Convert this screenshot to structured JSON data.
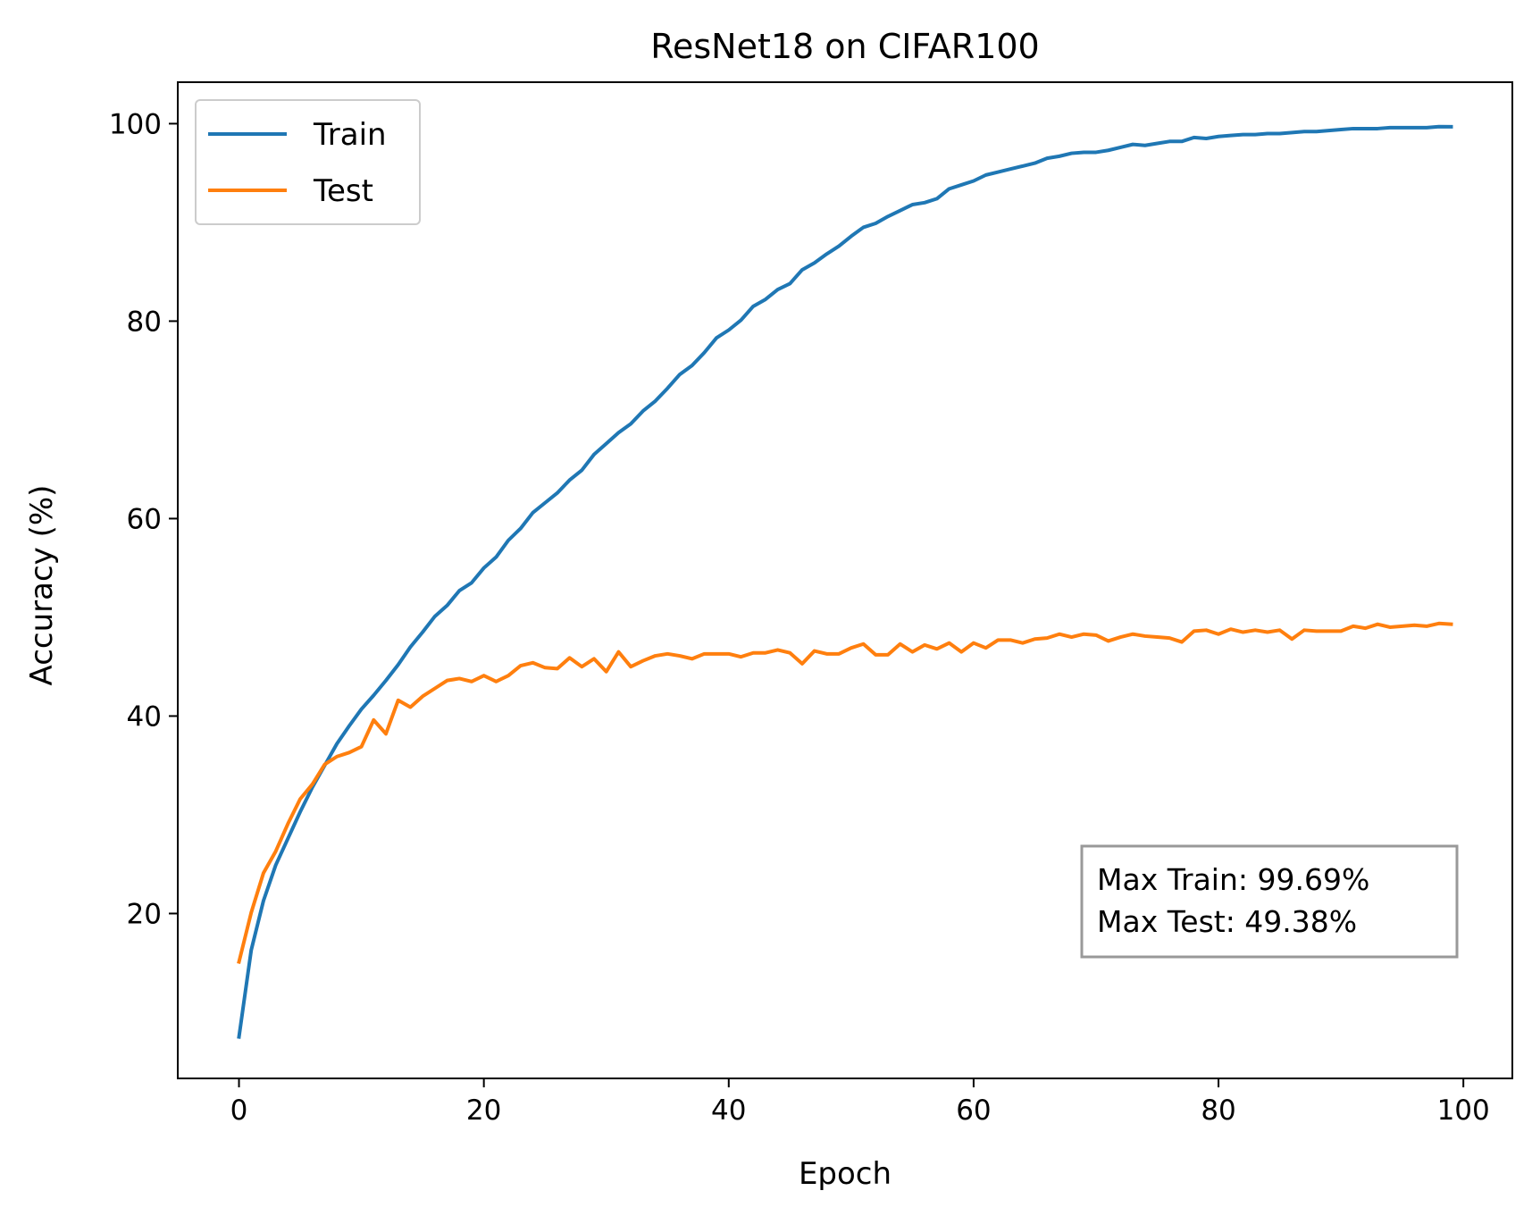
{
  "chart_data": {
    "type": "line",
    "title": "ResNet18 on CIFAR100",
    "xlabel": "Epoch",
    "ylabel": "Accuracy (%)",
    "xlim": [
      -5,
      104
    ],
    "ylim": [
      3.3,
      104.2
    ],
    "xticks": [
      0,
      20,
      40,
      60,
      80,
      100
    ],
    "yticks": [
      20,
      40,
      60,
      80,
      100
    ],
    "grid": false,
    "legend_position": "top-left",
    "annotation_position": "bottom-right",
    "x": [
      0,
      1,
      2,
      3,
      4,
      5,
      6,
      7,
      8,
      9,
      10,
      11,
      12,
      13,
      14,
      15,
      16,
      17,
      18,
      19,
      20,
      21,
      22,
      23,
      24,
      25,
      26,
      27,
      28,
      29,
      30,
      31,
      32,
      33,
      34,
      35,
      36,
      37,
      38,
      39,
      40,
      41,
      42,
      43,
      44,
      45,
      46,
      47,
      48,
      49,
      50,
      51,
      52,
      53,
      54,
      55,
      56,
      57,
      58,
      59,
      60,
      61,
      62,
      63,
      64,
      65,
      66,
      67,
      68,
      69,
      70,
      71,
      72,
      73,
      74,
      75,
      76,
      77,
      78,
      79,
      80,
      81,
      82,
      83,
      84,
      85,
      86,
      87,
      88,
      89,
      90,
      91,
      92,
      93,
      94,
      95,
      96,
      97,
      98,
      99
    ],
    "series": [
      {
        "name": "Train",
        "color": "#1f77b4",
        "values": [
          7.5,
          16.3,
          21.3,
          24.9,
          27.6,
          30.3,
          32.8,
          35.0,
          37.2,
          39.0,
          40.7,
          42.1,
          43.6,
          45.2,
          47.0,
          48.5,
          50.1,
          51.2,
          52.7,
          53.5,
          55.0,
          56.1,
          57.8,
          59.0,
          60.6,
          61.6,
          62.6,
          63.9,
          64.9,
          66.5,
          67.6,
          68.7,
          69.6,
          70.9,
          71.9,
          73.2,
          74.6,
          75.5,
          76.8,
          78.3,
          79.1,
          80.1,
          81.5,
          82.2,
          83.2,
          83.8,
          85.2,
          85.9,
          86.8,
          87.6,
          88.6,
          89.5,
          89.9,
          90.6,
          91.2,
          91.8,
          92.0,
          92.4,
          93.4,
          93.8,
          94.2,
          94.8,
          95.1,
          95.4,
          95.7,
          96.0,
          96.5,
          96.7,
          97.0,
          97.1,
          97.1,
          97.3,
          97.6,
          97.9,
          97.8,
          98.0,
          98.2,
          98.2,
          98.6,
          98.5,
          98.7,
          98.8,
          98.9,
          98.9,
          99.0,
          99.0,
          99.1,
          99.2,
          99.2,
          99.3,
          99.4,
          99.5,
          99.5,
          99.5,
          99.6,
          99.6,
          99.6,
          99.6,
          99.7,
          99.69
        ]
      },
      {
        "name": "Test",
        "color": "#ff7f0e",
        "values": [
          15.1,
          20.1,
          24.1,
          26.3,
          29.1,
          31.6,
          33.1,
          35.1,
          35.9,
          36.3,
          36.9,
          39.6,
          38.2,
          41.6,
          40.9,
          42.0,
          42.8,
          43.6,
          43.8,
          43.5,
          44.1,
          43.5,
          44.1,
          45.1,
          45.4,
          44.9,
          44.8,
          45.9,
          45.0,
          45.8,
          44.5,
          46.5,
          45.0,
          45.6,
          46.1,
          46.3,
          46.1,
          45.8,
          46.3,
          46.3,
          46.3,
          46.0,
          46.4,
          46.4,
          46.7,
          46.4,
          45.3,
          46.6,
          46.3,
          46.3,
          46.9,
          47.3,
          46.2,
          46.2,
          47.3,
          46.5,
          47.2,
          46.8,
          47.4,
          46.5,
          47.4,
          46.9,
          47.7,
          47.7,
          47.4,
          47.8,
          47.9,
          48.3,
          48.0,
          48.3,
          48.2,
          47.6,
          48.0,
          48.3,
          48.1,
          48.0,
          47.9,
          47.5,
          48.6,
          48.7,
          48.3,
          48.8,
          48.5,
          48.7,
          48.5,
          48.7,
          47.8,
          48.7,
          48.6,
          48.6,
          48.6,
          49.1,
          48.9,
          49.3,
          49.0,
          49.1,
          49.2,
          49.1,
          49.38,
          49.3
        ]
      }
    ],
    "annotation": [
      "Max Train: 99.69%",
      "Max Test: 49.38%"
    ]
  }
}
